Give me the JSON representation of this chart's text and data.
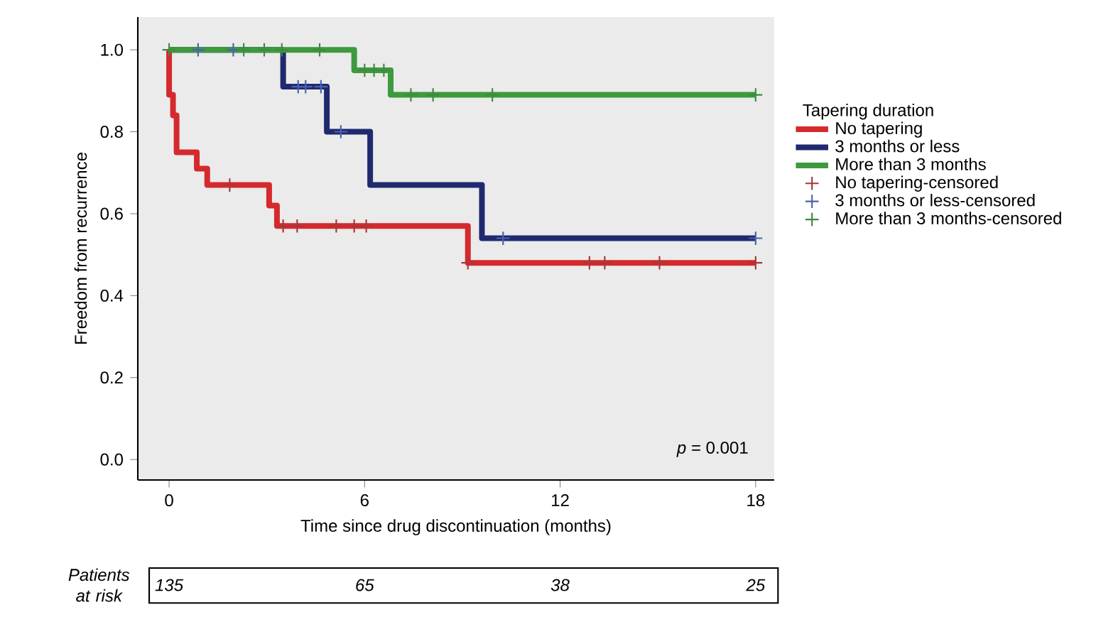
{
  "chart_data": {
    "type": "step",
    "xlabel": "Time since drug discontinuation (months)",
    "ylabel": "Freedom from recurrence",
    "legend_title": "Tapering duration",
    "legend": "right",
    "grid": false,
    "xlim": [
      -0.96,
      18.57
    ],
    "ylim": [
      -0.05,
      1.08
    ],
    "xticks": [
      0,
      6,
      12,
      18
    ],
    "yticks": [
      {
        "value": 0,
        "label": "0.0"
      },
      {
        "value": 0.2,
        "label": "0.2"
      },
      {
        "value": 0.4,
        "label": "0.4"
      },
      {
        "value": 0.6,
        "label": "0.6"
      },
      {
        "value": 0.8,
        "label": "0.8"
      },
      {
        "value": 1,
        "label": "1.0"
      }
    ],
    "series": [
      {
        "name": "No tapering",
        "marker": "none",
        "color": "#d42a2e",
        "x": [
          0,
          0,
          0.12,
          0.23,
          0.85,
          1.17,
          3.07,
          3.31,
          9.17,
          18
        ],
        "values": [
          1,
          0.89,
          0.84,
          0.75,
          0.71,
          0.67,
          0.62,
          0.57,
          0.48,
          0.48
        ]
      },
      {
        "name": "3 months or less",
        "marker": "none",
        "color": "#1f2a6e",
        "x": [
          0,
          3.5,
          4.84,
          6.17,
          9.6,
          18
        ],
        "values": [
          1,
          0.91,
          0.8,
          0.67,
          0.54,
          0.54
        ]
      },
      {
        "name": "More than 3 months",
        "marker": "none",
        "color": "#3d9a3d",
        "x": [
          0,
          5.68,
          6.8,
          18
        ],
        "values": [
          1,
          0.95,
          0.89,
          0.89
        ]
      },
      {
        "name": "No tapering-censored",
        "type": "scatter",
        "marker": "cross",
        "color": "#a8363a",
        "x": [
          1.86,
          3.5,
          3.93,
          5.13,
          5.68,
          6.05,
          9.17,
          12.9,
          13.37,
          15.05,
          18
        ],
        "values": [
          0.67,
          0.57,
          0.57,
          0.57,
          0.57,
          0.57,
          0.48,
          0.48,
          0.48,
          0.48,
          0.48
        ]
      },
      {
        "name": "3 months or less-censored",
        "type": "scatter",
        "marker": "cross",
        "color": "#4a62b0",
        "x": [
          0.89,
          1.97,
          3.96,
          4.19,
          4.66,
          5.27,
          10.25,
          18
        ],
        "values": [
          1,
          1,
          0.91,
          0.91,
          0.91,
          0.8,
          0.54,
          0.54
        ]
      },
      {
        "name": "More than 3 months-censored",
        "type": "scatter",
        "marker": "cross",
        "color": "#3f8a3f",
        "x": [
          0,
          2.29,
          2.92,
          3.46,
          4.62,
          6.0,
          6.29,
          6.59,
          7.42,
          8.1,
          9.92,
          18
        ],
        "values": [
          1,
          1,
          1,
          1,
          1,
          0.95,
          0.95,
          0.95,
          0.89,
          0.89,
          0.89,
          0.89
        ]
      }
    ],
    "annotations": [
      "*p* = 0.001",
      "Patients at risk",
      "135",
      "65",
      "38",
      "25"
    ]
  }
}
